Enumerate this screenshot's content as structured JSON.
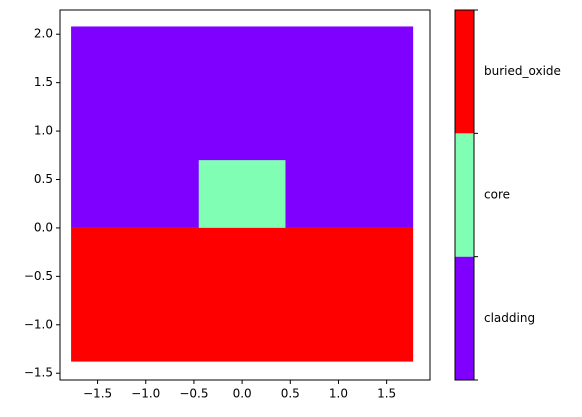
{
  "chart_data": {
    "type": "regions",
    "xlim": [
      -1.89,
      1.95
    ],
    "ylim": [
      -1.57,
      2.25
    ],
    "xticks": [
      {
        "value": -1.5,
        "label": "−1.5"
      },
      {
        "value": -1.0,
        "label": "−1.0"
      },
      {
        "value": -0.5,
        "label": "−0.5"
      },
      {
        "value": 0,
        "label": "0.0"
      },
      0.5,
      {
        "value": 1,
        "label": "1.0"
      },
      1.5
    ],
    "yticks": [
      {
        "value": -1.5,
        "label": "−1.5"
      },
      {
        "value": -1.0,
        "label": "−1.0"
      },
      {
        "value": -0.5,
        "label": "−0.5"
      },
      {
        "value": 0,
        "label": "0.0"
      },
      0.5,
      {
        "value": 1,
        "label": "1.0"
      },
      1.5,
      {
        "value": 2,
        "label": "2.0"
      }
    ],
    "series": [
      {
        "name": "cladding",
        "color": "#8000ff",
        "x": [
          -1.775,
          1.775
        ],
        "y": [
          0,
          2.08
        ]
      },
      {
        "name": "core",
        "color": "#80ffb4",
        "x": [
          -0.45,
          0.45
        ],
        "y": [
          0,
          0.7
        ]
      },
      {
        "name": "buried_oxide",
        "color": "#ff0000",
        "x": [
          -1.775,
          1.775
        ],
        "y": [
          -1.38,
          0
        ]
      }
    ]
  }
}
